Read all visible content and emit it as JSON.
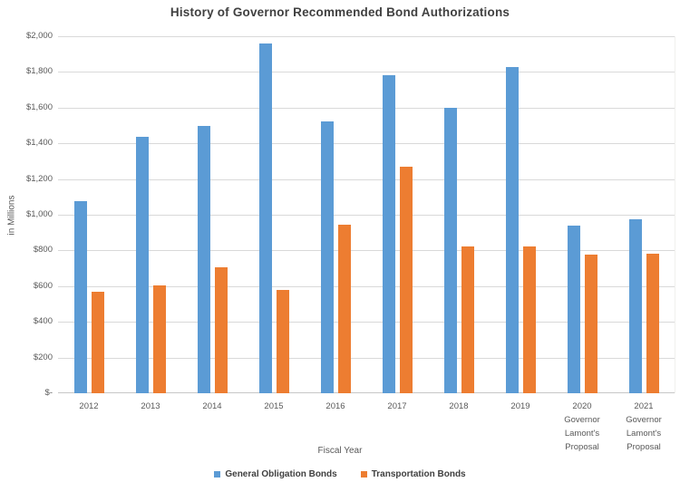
{
  "title": "History of Governor Recommended Bond Authorizations",
  "y_axis": {
    "title": "in Millions",
    "tick_labels": [
      "$2,000",
      "$1,800",
      "$1,600",
      "$1,400",
      "$1,200",
      "$1,000",
      "$800",
      "$600",
      "$400",
      "$200",
      "$-"
    ]
  },
  "x_axis": {
    "title": "Fiscal Year",
    "category_lines": [
      [
        "2012"
      ],
      [
        "2013"
      ],
      [
        "2014"
      ],
      [
        "2015"
      ],
      [
        "2016"
      ],
      [
        "2017"
      ],
      [
        "2018"
      ],
      [
        "2019"
      ],
      [
        "2020",
        "Governor",
        "Lamont's",
        "Proposal"
      ],
      [
        "2021",
        "Governor",
        "Lamont's",
        "Proposal"
      ]
    ]
  },
  "legend": {
    "position": "bottom",
    "items": [
      {
        "label": "General Obligation Bonds",
        "color": "#5B9BD5"
      },
      {
        "label": "Transportation Bonds",
        "color": "#ED7D31"
      }
    ]
  },
  "colors": {
    "general_obligation": "#5B9BD5",
    "transportation": "#ED7D31",
    "gridline": "#D9D9D9",
    "axis_text": "#595959",
    "title_text": "#404040"
  },
  "chart_data": {
    "type": "bar",
    "title": "History of Governor Recommended Bond Authorizations",
    "xlabel": "Fiscal Year",
    "ylabel": "in Millions",
    "ylim": [
      0,
      2000
    ],
    "ytick_step": 200,
    "grid": true,
    "legend_position": "bottom",
    "categories": [
      "2012",
      "2013",
      "2014",
      "2015",
      "2016",
      "2017",
      "2018",
      "2019",
      "2020 Governor Lamont's Proposal",
      "2021 Governor Lamont's Proposal"
    ],
    "series": [
      {
        "name": "General Obligation Bonds",
        "color": "#5B9BD5",
        "values": [
          1075,
          1435,
          1500,
          1960,
          1525,
          1780,
          1600,
          1825,
          940,
          975
        ]
      },
      {
        "name": "Transportation Bonds",
        "color": "#ED7D31",
        "values": [
          570,
          605,
          705,
          580,
          945,
          1270,
          820,
          820,
          775,
          780
        ]
      }
    ]
  }
}
